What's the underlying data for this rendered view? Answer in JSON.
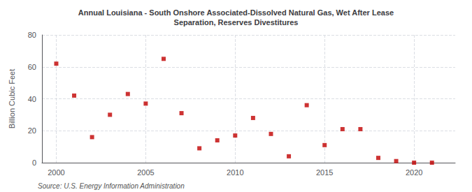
{
  "chart_data": {
    "type": "scatter",
    "title": "Annual Louisiana - South Onshore Associated-Dissolved Natural Gas, Wet After Lease\nSeparation, Reserves Divestitures",
    "ylabel": "Billion Cubic Feet",
    "source": "Source: U.S. Energy Information Administration",
    "x": [
      2000,
      2001,
      2002,
      2003,
      2004,
      2005,
      2006,
      2007,
      2008,
      2009,
      2010,
      2011,
      2012,
      2013,
      2014,
      2015,
      2016,
      2017,
      2018,
      2019,
      2020,
      2021
    ],
    "values": [
      62,
      42,
      16,
      30,
      43,
      37,
      65,
      31,
      9,
      14,
      17,
      28,
      18,
      4,
      36,
      11,
      21,
      21,
      3,
      1,
      0,
      0
    ],
    "color": "#c00000",
    "marker": "square",
    "xlim": [
      1999.2,
      2022.3
    ],
    "xticks": [
      2000,
      2005,
      2010,
      2015,
      2020
    ],
    "ylim": [
      0,
      80
    ],
    "yticks": [
      0,
      20,
      40,
      60,
      80
    ],
    "grid": true
  }
}
